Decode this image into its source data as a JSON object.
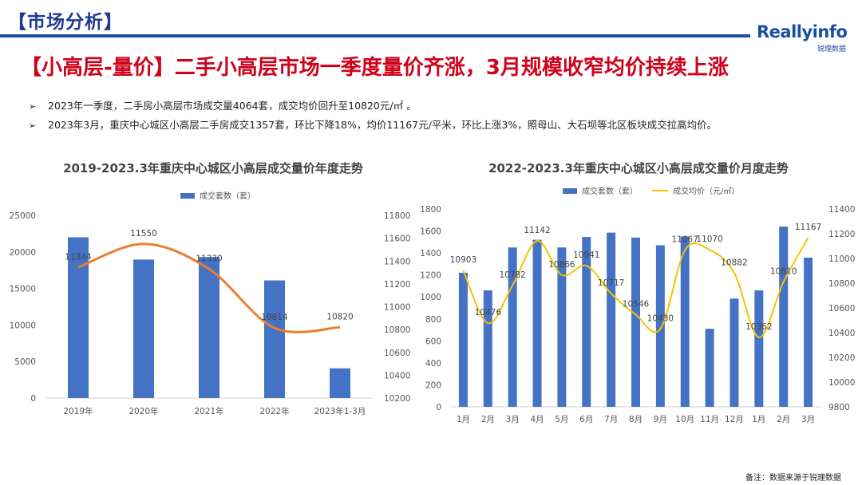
{
  "header": {
    "section_tag": "【市场分析】",
    "logo_text": "Reallyinfo",
    "logo_sub": "锐理数据"
  },
  "headline": "【小高层-量价】二手小高层市场一季度量价齐涨，3月规模收窄均价持续上涨",
  "bullets": [
    "2023年一季度，二手房小高层市场成交量4064套，成交均价回升至10820元/㎡ 。",
    "2023年3月，重庆中心城区小高层二手房成交1357套，环比下降18%，均价11167元/平米，环比上涨3%，照母山、大石坝等北区板块成交拉高均价。"
  ],
  "bullet_mark": "➢",
  "footnote": "备注：数据来源于锐理数据",
  "colors": {
    "bar": "#4472c4",
    "annual_line": "#ed7d31",
    "monthly_line": "#f5c400",
    "headline": "#d0021b",
    "brand": "#1f4fa3"
  },
  "chart_data": [
    {
      "type": "bar",
      "title": "2019-2023.3年重庆中心城区小高层成交量价年度走势",
      "categories": [
        "2019年",
        "2020年",
        "2021年",
        "2022年",
        "2023年1-3月"
      ],
      "series": [
        {
          "name": "成交套数（套）",
          "type": "bar",
          "axis": "left",
          "values": [
            22000,
            18950,
            19300,
            16100,
            4064
          ]
        },
        {
          "name": "",
          "type": "line",
          "axis": "right",
          "values": [
            11344,
            11550,
            11330,
            10814,
            10820
          ]
        }
      ],
      "data_labels": [
        "11344",
        "11550",
        "11330",
        "10814",
        "10820"
      ],
      "y_left": {
        "range": [
          0,
          25000
        ],
        "ticks": [
          "0",
          "5000",
          "10000",
          "15000",
          "20000",
          "25000"
        ]
      },
      "y_right": {
        "range": [
          10200,
          11800
        ],
        "ticks": [
          "10200",
          "10400",
          "10600",
          "10800",
          "11000",
          "11200",
          "11400",
          "11600",
          "11800"
        ]
      },
      "legend": "top"
    },
    {
      "type": "bar",
      "title": "2022-2023.3年重庆中心城区小高层成交量价月度走势",
      "categories": [
        "1月",
        "2月",
        "3月",
        "4月",
        "5月",
        "6月",
        "7月",
        "8月",
        "9月",
        "10月",
        "11月",
        "12月",
        "1月",
        "2月",
        "3月"
      ],
      "series": [
        {
          "name": "成交套数（套）",
          "type": "bar",
          "axis": "left",
          "values": [
            1220,
            1060,
            1450,
            1520,
            1450,
            1545,
            1585,
            1540,
            1470,
            1550,
            710,
            985,
            1060,
            1640,
            1357
          ]
        },
        {
          "name": "成交均价（元/㎡）",
          "type": "line",
          "axis": "right",
          "values": [
            10903,
            10476,
            10782,
            11142,
            10866,
            10941,
            10717,
            10546,
            10430,
            11067,
            11070,
            10882,
            10362,
            10810,
            11167
          ]
        }
      ],
      "data_labels": [
        "10903",
        "10476",
        "10782",
        "11142",
        "10866",
        "10941",
        "10717",
        "10546",
        "10430",
        "11067",
        "11070",
        "10882",
        "10362",
        "10810",
        "11167"
      ],
      "y_left": {
        "range": [
          0,
          1800
        ],
        "ticks": [
          "0",
          "200",
          "400",
          "600",
          "800",
          "1000",
          "1200",
          "1400",
          "1600",
          "1800"
        ]
      },
      "y_right": {
        "range": [
          9800,
          11400
        ],
        "ticks": [
          "9800",
          "10000",
          "10200",
          "10400",
          "10600",
          "10800",
          "11000",
          "11200",
          "11400"
        ]
      },
      "legend": "top"
    }
  ]
}
